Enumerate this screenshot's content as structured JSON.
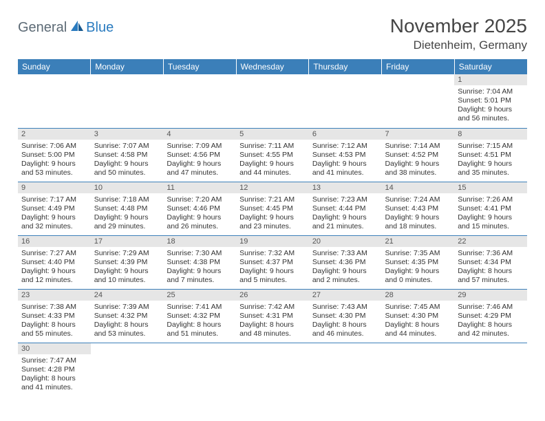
{
  "logo": {
    "part1": "General",
    "part2": "Blue"
  },
  "title": "November 2025",
  "location": "Dietenheim, Germany",
  "colors": {
    "header_bg": "#3b7fb9",
    "header_text": "#ffffff",
    "daynum_bg": "#e6e6e6",
    "border": "#3b7fb9",
    "logo_gray": "#5c6a75",
    "logo_blue": "#2a7bbf"
  },
  "day_headers": [
    "Sunday",
    "Monday",
    "Tuesday",
    "Wednesday",
    "Thursday",
    "Friday",
    "Saturday"
  ],
  "weeks": [
    [
      null,
      null,
      null,
      null,
      null,
      null,
      {
        "n": "1",
        "sunrise": "Sunrise: 7:04 AM",
        "sunset": "Sunset: 5:01 PM",
        "daylight": "Daylight: 9 hours and 56 minutes."
      }
    ],
    [
      {
        "n": "2",
        "sunrise": "Sunrise: 7:06 AM",
        "sunset": "Sunset: 5:00 PM",
        "daylight": "Daylight: 9 hours and 53 minutes."
      },
      {
        "n": "3",
        "sunrise": "Sunrise: 7:07 AM",
        "sunset": "Sunset: 4:58 PM",
        "daylight": "Daylight: 9 hours and 50 minutes."
      },
      {
        "n": "4",
        "sunrise": "Sunrise: 7:09 AM",
        "sunset": "Sunset: 4:56 PM",
        "daylight": "Daylight: 9 hours and 47 minutes."
      },
      {
        "n": "5",
        "sunrise": "Sunrise: 7:11 AM",
        "sunset": "Sunset: 4:55 PM",
        "daylight": "Daylight: 9 hours and 44 minutes."
      },
      {
        "n": "6",
        "sunrise": "Sunrise: 7:12 AM",
        "sunset": "Sunset: 4:53 PM",
        "daylight": "Daylight: 9 hours and 41 minutes."
      },
      {
        "n": "7",
        "sunrise": "Sunrise: 7:14 AM",
        "sunset": "Sunset: 4:52 PM",
        "daylight": "Daylight: 9 hours and 38 minutes."
      },
      {
        "n": "8",
        "sunrise": "Sunrise: 7:15 AM",
        "sunset": "Sunset: 4:51 PM",
        "daylight": "Daylight: 9 hours and 35 minutes."
      }
    ],
    [
      {
        "n": "9",
        "sunrise": "Sunrise: 7:17 AM",
        "sunset": "Sunset: 4:49 PM",
        "daylight": "Daylight: 9 hours and 32 minutes."
      },
      {
        "n": "10",
        "sunrise": "Sunrise: 7:18 AM",
        "sunset": "Sunset: 4:48 PM",
        "daylight": "Daylight: 9 hours and 29 minutes."
      },
      {
        "n": "11",
        "sunrise": "Sunrise: 7:20 AM",
        "sunset": "Sunset: 4:46 PM",
        "daylight": "Daylight: 9 hours and 26 minutes."
      },
      {
        "n": "12",
        "sunrise": "Sunrise: 7:21 AM",
        "sunset": "Sunset: 4:45 PM",
        "daylight": "Daylight: 9 hours and 23 minutes."
      },
      {
        "n": "13",
        "sunrise": "Sunrise: 7:23 AM",
        "sunset": "Sunset: 4:44 PM",
        "daylight": "Daylight: 9 hours and 21 minutes."
      },
      {
        "n": "14",
        "sunrise": "Sunrise: 7:24 AM",
        "sunset": "Sunset: 4:43 PM",
        "daylight": "Daylight: 9 hours and 18 minutes."
      },
      {
        "n": "15",
        "sunrise": "Sunrise: 7:26 AM",
        "sunset": "Sunset: 4:41 PM",
        "daylight": "Daylight: 9 hours and 15 minutes."
      }
    ],
    [
      {
        "n": "16",
        "sunrise": "Sunrise: 7:27 AM",
        "sunset": "Sunset: 4:40 PM",
        "daylight": "Daylight: 9 hours and 12 minutes."
      },
      {
        "n": "17",
        "sunrise": "Sunrise: 7:29 AM",
        "sunset": "Sunset: 4:39 PM",
        "daylight": "Daylight: 9 hours and 10 minutes."
      },
      {
        "n": "18",
        "sunrise": "Sunrise: 7:30 AM",
        "sunset": "Sunset: 4:38 PM",
        "daylight": "Daylight: 9 hours and 7 minutes."
      },
      {
        "n": "19",
        "sunrise": "Sunrise: 7:32 AM",
        "sunset": "Sunset: 4:37 PM",
        "daylight": "Daylight: 9 hours and 5 minutes."
      },
      {
        "n": "20",
        "sunrise": "Sunrise: 7:33 AM",
        "sunset": "Sunset: 4:36 PM",
        "daylight": "Daylight: 9 hours and 2 minutes."
      },
      {
        "n": "21",
        "sunrise": "Sunrise: 7:35 AM",
        "sunset": "Sunset: 4:35 PM",
        "daylight": "Daylight: 9 hours and 0 minutes."
      },
      {
        "n": "22",
        "sunrise": "Sunrise: 7:36 AM",
        "sunset": "Sunset: 4:34 PM",
        "daylight": "Daylight: 8 hours and 57 minutes."
      }
    ],
    [
      {
        "n": "23",
        "sunrise": "Sunrise: 7:38 AM",
        "sunset": "Sunset: 4:33 PM",
        "daylight": "Daylight: 8 hours and 55 minutes."
      },
      {
        "n": "24",
        "sunrise": "Sunrise: 7:39 AM",
        "sunset": "Sunset: 4:32 PM",
        "daylight": "Daylight: 8 hours and 53 minutes."
      },
      {
        "n": "25",
        "sunrise": "Sunrise: 7:41 AM",
        "sunset": "Sunset: 4:32 PM",
        "daylight": "Daylight: 8 hours and 51 minutes."
      },
      {
        "n": "26",
        "sunrise": "Sunrise: 7:42 AM",
        "sunset": "Sunset: 4:31 PM",
        "daylight": "Daylight: 8 hours and 48 minutes."
      },
      {
        "n": "27",
        "sunrise": "Sunrise: 7:43 AM",
        "sunset": "Sunset: 4:30 PM",
        "daylight": "Daylight: 8 hours and 46 minutes."
      },
      {
        "n": "28",
        "sunrise": "Sunrise: 7:45 AM",
        "sunset": "Sunset: 4:30 PM",
        "daylight": "Daylight: 8 hours and 44 minutes."
      },
      {
        "n": "29",
        "sunrise": "Sunrise: 7:46 AM",
        "sunset": "Sunset: 4:29 PM",
        "daylight": "Daylight: 8 hours and 42 minutes."
      }
    ],
    [
      {
        "n": "30",
        "sunrise": "Sunrise: 7:47 AM",
        "sunset": "Sunset: 4:28 PM",
        "daylight": "Daylight: 8 hours and 41 minutes."
      },
      null,
      null,
      null,
      null,
      null,
      null
    ]
  ]
}
